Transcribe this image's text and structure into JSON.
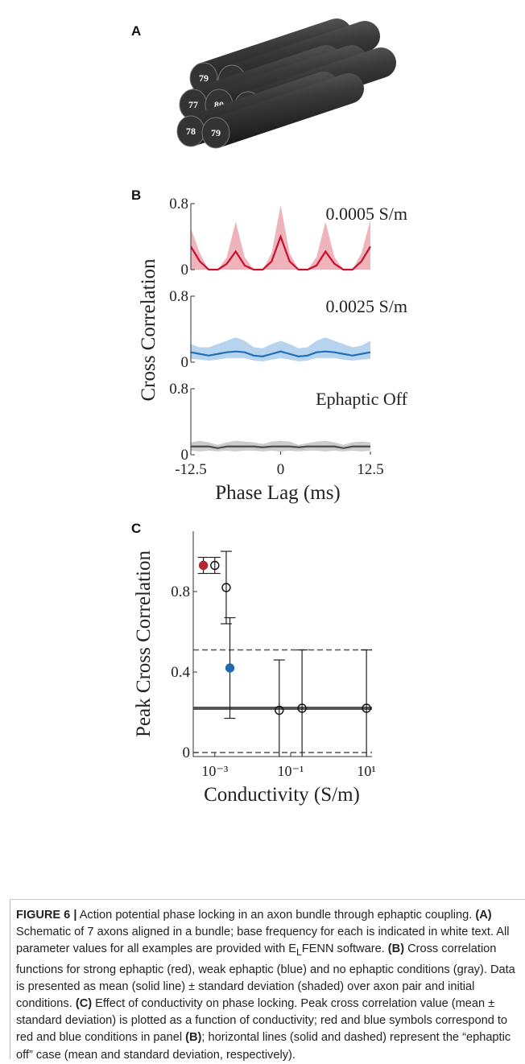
{
  "panel_a": {
    "label": "A",
    "axon_labels": [
      79,
      78,
      77,
      80,
      77,
      78,
      79
    ]
  },
  "chart_data": [
    {
      "type": "line",
      "panel_label": "B",
      "annotation": "0.0005 S/m",
      "x": [
        -12.5,
        -11.25,
        -10,
        -8.75,
        -7.5,
        -6.25,
        -5,
        -3.75,
        -2.5,
        -1.25,
        0,
        1.25,
        2.5,
        3.75,
        5,
        6.25,
        7.5,
        8.75,
        10,
        11.25,
        12.5
      ],
      "xlim": [
        -12.5,
        12.5
      ],
      "ylim": [
        0,
        0.8
      ],
      "yticks": [
        0,
        0.8
      ],
      "series": [
        {
          "color": "#c8102e",
          "band_color": "#efb3bb",
          "values": [
            0.28,
            0.1,
            0,
            0,
            0.07,
            0.22,
            0.05,
            0,
            0,
            0.1,
            0.4,
            0.1,
            0,
            0,
            0.05,
            0.22,
            0.07,
            0,
            0,
            0.1,
            0.28
          ],
          "band_upper": [
            0.5,
            0.2,
            0,
            0,
            0.15,
            0.58,
            0.15,
            0,
            0,
            0.2,
            0.78,
            0.2,
            0,
            0,
            0.15,
            0.58,
            0.15,
            0,
            0,
            0.2,
            0.6
          ],
          "band_lower": [
            0,
            0,
            0,
            0,
            0,
            0,
            0,
            0,
            0,
            0,
            0,
            0,
            0,
            0,
            0,
            0,
            0,
            0,
            0,
            0,
            0
          ]
        }
      ]
    },
    {
      "type": "line",
      "annotation": "0.0025 S/m",
      "ylabel": "Cross Correlation",
      "x": [
        -12.5,
        -11.25,
        -10,
        -8.75,
        -7.5,
        -6.25,
        -5,
        -3.75,
        -2.5,
        -1.25,
        0,
        1.25,
        2.5,
        3.75,
        5,
        6.25,
        7.5,
        8.75,
        10,
        11.25,
        12.5
      ],
      "xlim": [
        -12.5,
        12.5
      ],
      "ylim": [
        0,
        0.8
      ],
      "yticks": [
        0,
        0.8
      ],
      "series": [
        {
          "color": "#1f6fb8",
          "band_color": "#b7d4ef",
          "values": [
            0.12,
            0.1,
            0.08,
            0.1,
            0.12,
            0.13,
            0.12,
            0.08,
            0.07,
            0.1,
            0.13,
            0.1,
            0.07,
            0.08,
            0.12,
            0.13,
            0.12,
            0.1,
            0.08,
            0.1,
            0.12
          ],
          "band_upper": [
            0.22,
            0.18,
            0.18,
            0.22,
            0.26,
            0.3,
            0.26,
            0.18,
            0.17,
            0.22,
            0.26,
            0.22,
            0.17,
            0.18,
            0.26,
            0.3,
            0.26,
            0.22,
            0.18,
            0.2,
            0.26
          ],
          "band_lower": [
            0.04,
            0.03,
            0.02,
            0.03,
            0.05,
            0.05,
            0.05,
            0.02,
            0.01,
            0.03,
            0.05,
            0.03,
            0.01,
            0.02,
            0.05,
            0.05,
            0.05,
            0.03,
            0.02,
            0.03,
            0.04
          ]
        }
      ]
    },
    {
      "type": "line",
      "annotation": "Ephaptic Off",
      "xlabel": "Phase Lag (ms)",
      "x": [
        -12.5,
        -11.25,
        -10,
        -8.75,
        -7.5,
        -6.25,
        -5,
        -3.75,
        -2.5,
        -1.25,
        0,
        1.25,
        2.5,
        3.75,
        5,
        6.25,
        7.5,
        8.75,
        10,
        11.25,
        12.5
      ],
      "xlim": [
        -12.5,
        12.5
      ],
      "xticks": [
        -12.5,
        0,
        12.5
      ],
      "ylim": [
        0,
        0.8
      ],
      "yticks": [
        0,
        0.8
      ],
      "series": [
        {
          "color": "#4d4d4d",
          "band_color": "#cccccc",
          "values": [
            0.1,
            0.1,
            0.1,
            0.08,
            0.1,
            0.1,
            0.1,
            0.1,
            0.09,
            0.1,
            0.1,
            0.1,
            0.09,
            0.1,
            0.1,
            0.1,
            0.1,
            0.08,
            0.1,
            0.1,
            0.1
          ],
          "band_upper": [
            0.15,
            0.17,
            0.15,
            0.12,
            0.15,
            0.17,
            0.16,
            0.15,
            0.13,
            0.16,
            0.17,
            0.16,
            0.12,
            0.14,
            0.16,
            0.17,
            0.15,
            0.12,
            0.15,
            0.16,
            0.15
          ],
          "band_lower": [
            0.05,
            0.04,
            0.05,
            0.04,
            0.05,
            0.04,
            0.05,
            0.05,
            0.04,
            0.05,
            0.04,
            0.05,
            0.04,
            0.05,
            0.05,
            0.04,
            0.05,
            0.04,
            0.05,
            0.04,
            0.05
          ]
        }
      ]
    },
    {
      "type": "scatter",
      "panel_label": "C",
      "xlabel": "Conductivity (S/m)",
      "ylabel": "Peak Cross Correlation",
      "xlog": true,
      "xlim": [
        0.00027,
        14
      ],
      "ylim": [
        -0.02,
        1.1
      ],
      "xticks": [
        {
          "value": 0.001,
          "label": "10⁻³"
        },
        {
          "value": 0.1,
          "label": "10⁻¹"
        },
        {
          "value": 10,
          "label": "10¹"
        }
      ],
      "yticks": [
        0,
        0.4,
        0.8
      ],
      "x": [
        0.0005,
        0.001,
        0.002,
        0.0025,
        0.05,
        0.2,
        10
      ],
      "values": [
        0.93,
        0.93,
        0.82,
        0.42,
        0.21,
        0.22,
        0.22
      ],
      "errors": [
        0.04,
        0.04,
        0.18,
        0.25,
        0.25,
        0.29,
        0.29
      ],
      "fills": [
        "#b5252b",
        "none",
        "none",
        "#2468b0",
        "none",
        "none",
        "none"
      ],
      "hlines": [
        {
          "value": 0.22,
          "style": "solid"
        },
        {
          "value": 0.51,
          "style": "dashed"
        },
        {
          "value": 0.0,
          "style": "dashed"
        }
      ]
    }
  ],
  "caption": {
    "figure_label": "FIGURE 6 |",
    "segments": [
      " Action potential phase locking in an axon bundle through ephaptic coupling. ",
      "(A)",
      " Schematic of 7 axons aligned in a bundle; base frequency for each is indicated in white text. All parameter values for all examples are provided with E",
      "L",
      "FENN software. ",
      "(B)",
      " Cross correlation functions for strong ephaptic (red), weak ephaptic (blue) and no ephaptic conditions (gray). Data is presented as mean (solid line) ± standard deviation (shaded) over axon pair and initial conditions. ",
      "(C)",
      " Effect of conductivity on phase locking. Peak cross correlation value (mean ± standard deviation) is plotted as a function of conductivity; red and blue symbols correspond to red and blue conditions in panel ",
      "(B)",
      "; horizontal lines (solid and dashed) represent the “ephaptic off” case (mean and standard deviation, respectively)."
    ]
  }
}
